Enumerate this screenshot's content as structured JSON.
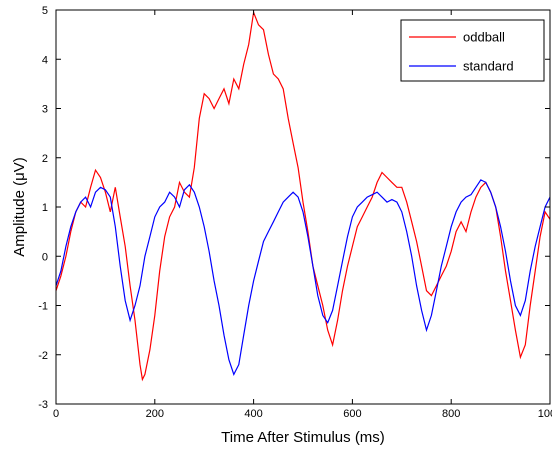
{
  "chart_data": {
    "type": "line",
    "title": "",
    "xlabel": "Time After Stimulus (ms)",
    "ylabel": "Amplitude (μV)",
    "xlim": [
      0,
      1000
    ],
    "ylim": [
      -3,
      5
    ],
    "xticks": [
      0,
      200,
      400,
      600,
      800,
      1000
    ],
    "xtick_labels": [
      "0",
      "200",
      "400",
      "600",
      "800",
      "1000"
    ],
    "yticks": [
      -3,
      -2,
      -1,
      0,
      1,
      2,
      3,
      4,
      5
    ],
    "ytick_labels": [
      "-3",
      "-2",
      "-1",
      "0",
      "1",
      "2",
      "3",
      "4",
      "5"
    ],
    "grid": false,
    "legend_position": "top-right",
    "series": [
      {
        "name": "oddball",
        "color": "#ff0000",
        "points": [
          [
            0,
            -0.7
          ],
          [
            10,
            -0.4
          ],
          [
            20,
            0
          ],
          [
            30,
            0.5
          ],
          [
            40,
            0.9
          ],
          [
            50,
            1.1
          ],
          [
            60,
            1.0
          ],
          [
            70,
            1.4
          ],
          [
            80,
            1.75
          ],
          [
            90,
            1.6
          ],
          [
            100,
            1.3
          ],
          [
            110,
            0.9
          ],
          [
            120,
            1.4
          ],
          [
            130,
            0.8
          ],
          [
            140,
            0.2
          ],
          [
            150,
            -0.6
          ],
          [
            160,
            -1.3
          ],
          [
            170,
            -2.2
          ],
          [
            175,
            -2.5
          ],
          [
            180,
            -2.4
          ],
          [
            190,
            -1.9
          ],
          [
            200,
            -1.2
          ],
          [
            210,
            -0.3
          ],
          [
            220,
            0.4
          ],
          [
            230,
            0.8
          ],
          [
            240,
            1.0
          ],
          [
            250,
            1.5
          ],
          [
            260,
            1.3
          ],
          [
            270,
            1.2
          ],
          [
            280,
            1.8
          ],
          [
            290,
            2.8
          ],
          [
            300,
            3.3
          ],
          [
            310,
            3.2
          ],
          [
            320,
            3.0
          ],
          [
            330,
            3.2
          ],
          [
            340,
            3.4
          ],
          [
            350,
            3.1
          ],
          [
            360,
            3.6
          ],
          [
            370,
            3.4
          ],
          [
            380,
            3.9
          ],
          [
            390,
            4.3
          ],
          [
            400,
            4.95
          ],
          [
            410,
            4.7
          ],
          [
            420,
            4.6
          ],
          [
            430,
            4.1
          ],
          [
            440,
            3.7
          ],
          [
            450,
            3.6
          ],
          [
            460,
            3.4
          ],
          [
            470,
            2.8
          ],
          [
            480,
            2.3
          ],
          [
            490,
            1.8
          ],
          [
            500,
            1.1
          ],
          [
            510,
            0.5
          ],
          [
            520,
            -0.2
          ],
          [
            530,
            -0.6
          ],
          [
            540,
            -1.0
          ],
          [
            550,
            -1.5
          ],
          [
            560,
            -1.8
          ],
          [
            570,
            -1.3
          ],
          [
            580,
            -0.7
          ],
          [
            590,
            -0.2
          ],
          [
            600,
            0.2
          ],
          [
            610,
            0.6
          ],
          [
            620,
            0.8
          ],
          [
            630,
            1.0
          ],
          [
            640,
            1.2
          ],
          [
            650,
            1.5
          ],
          [
            660,
            1.7
          ],
          [
            670,
            1.6
          ],
          [
            680,
            1.5
          ],
          [
            690,
            1.4
          ],
          [
            700,
            1.4
          ],
          [
            710,
            1.1
          ],
          [
            720,
            0.7
          ],
          [
            730,
            0.3
          ],
          [
            740,
            -0.2
          ],
          [
            750,
            -0.7
          ],
          [
            760,
            -0.8
          ],
          [
            770,
            -0.6
          ],
          [
            780,
            -0.4
          ],
          [
            790,
            -0.2
          ],
          [
            800,
            0.1
          ],
          [
            810,
            0.5
          ],
          [
            820,
            0.7
          ],
          [
            830,
            0.5
          ],
          [
            840,
            0.9
          ],
          [
            850,
            1.2
          ],
          [
            860,
            1.4
          ],
          [
            870,
            1.5
          ],
          [
            880,
            1.3
          ],
          [
            890,
            1.0
          ],
          [
            900,
            0.4
          ],
          [
            910,
            -0.3
          ],
          [
            920,
            -0.9
          ],
          [
            930,
            -1.5
          ],
          [
            940,
            -2.05
          ],
          [
            950,
            -1.8
          ],
          [
            960,
            -1.0
          ],
          [
            970,
            -0.3
          ],
          [
            980,
            0.4
          ],
          [
            990,
            0.9
          ],
          [
            1000,
            0.75
          ]
        ]
      },
      {
        "name": "standard",
        "color": "#0000ff",
        "points": [
          [
            0,
            -0.6
          ],
          [
            10,
            -0.3
          ],
          [
            20,
            0.2
          ],
          [
            30,
            0.6
          ],
          [
            40,
            0.9
          ],
          [
            50,
            1.1
          ],
          [
            60,
            1.2
          ],
          [
            70,
            1.0
          ],
          [
            80,
            1.3
          ],
          [
            90,
            1.4
          ],
          [
            100,
            1.35
          ],
          [
            110,
            1.2
          ],
          [
            120,
            0.6
          ],
          [
            130,
            -0.2
          ],
          [
            140,
            -0.9
          ],
          [
            150,
            -1.3
          ],
          [
            160,
            -1.0
          ],
          [
            170,
            -0.6
          ],
          [
            180,
            0
          ],
          [
            190,
            0.4
          ],
          [
            200,
            0.8
          ],
          [
            210,
            1.0
          ],
          [
            220,
            1.1
          ],
          [
            230,
            1.3
          ],
          [
            240,
            1.2
          ],
          [
            250,
            1.0
          ],
          [
            260,
            1.35
          ],
          [
            270,
            1.45
          ],
          [
            280,
            1.3
          ],
          [
            290,
            1.0
          ],
          [
            300,
            0.6
          ],
          [
            310,
            0.1
          ],
          [
            320,
            -0.5
          ],
          [
            330,
            -1.0
          ],
          [
            340,
            -1.6
          ],
          [
            350,
            -2.1
          ],
          [
            360,
            -2.4
          ],
          [
            370,
            -2.2
          ],
          [
            380,
            -1.6
          ],
          [
            390,
            -1.0
          ],
          [
            400,
            -0.5
          ],
          [
            410,
            -0.1
          ],
          [
            420,
            0.3
          ],
          [
            430,
            0.5
          ],
          [
            440,
            0.7
          ],
          [
            450,
            0.9
          ],
          [
            460,
            1.1
          ],
          [
            470,
            1.2
          ],
          [
            480,
            1.3
          ],
          [
            490,
            1.2
          ],
          [
            500,
            0.9
          ],
          [
            510,
            0.4
          ],
          [
            520,
            -0.2
          ],
          [
            530,
            -0.8
          ],
          [
            540,
            -1.2
          ],
          [
            550,
            -1.35
          ],
          [
            560,
            -1.1
          ],
          [
            570,
            -0.6
          ],
          [
            580,
            -0.1
          ],
          [
            590,
            0.4
          ],
          [
            600,
            0.8
          ],
          [
            610,
            1.0
          ],
          [
            620,
            1.1
          ],
          [
            630,
            1.2
          ],
          [
            640,
            1.25
          ],
          [
            650,
            1.3
          ],
          [
            660,
            1.2
          ],
          [
            670,
            1.1
          ],
          [
            680,
            1.15
          ],
          [
            690,
            1.1
          ],
          [
            700,
            0.9
          ],
          [
            710,
            0.5
          ],
          [
            720,
            0
          ],
          [
            730,
            -0.6
          ],
          [
            740,
            -1.1
          ],
          [
            750,
            -1.5
          ],
          [
            760,
            -1.2
          ],
          [
            770,
            -0.7
          ],
          [
            780,
            -0.2
          ],
          [
            790,
            0.2
          ],
          [
            800,
            0.6
          ],
          [
            810,
            0.9
          ],
          [
            820,
            1.1
          ],
          [
            830,
            1.2
          ],
          [
            840,
            1.25
          ],
          [
            850,
            1.4
          ],
          [
            860,
            1.55
          ],
          [
            870,
            1.5
          ],
          [
            880,
            1.3
          ],
          [
            890,
            1.0
          ],
          [
            900,
            0.6
          ],
          [
            910,
            0.1
          ],
          [
            920,
            -0.5
          ],
          [
            930,
            -1.0
          ],
          [
            940,
            -1.2
          ],
          [
            950,
            -0.9
          ],
          [
            960,
            -0.3
          ],
          [
            970,
            0.2
          ],
          [
            980,
            0.6
          ],
          [
            990,
            1.0
          ],
          [
            1000,
            1.2
          ]
        ]
      }
    ]
  }
}
